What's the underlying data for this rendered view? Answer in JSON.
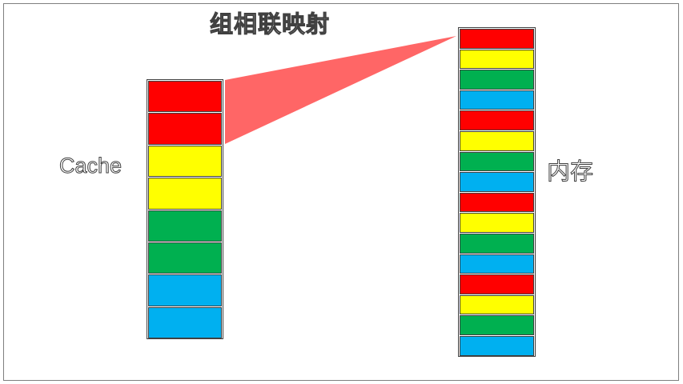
{
  "title": "组相联映射",
  "cache_label": "Cache",
  "memory_label": "内存",
  "colors": {
    "red": "#ff0000",
    "yellow": "#ffff00",
    "green": "#00b050",
    "blue": "#00b0f0",
    "mapping_fan": "#ff6666"
  },
  "cache_blocks": [
    "red",
    "red",
    "yellow",
    "yellow",
    "green",
    "green",
    "blue",
    "blue"
  ],
  "memory_blocks": [
    "red",
    "yellow",
    "green",
    "blue",
    "red",
    "yellow",
    "green",
    "blue",
    "red",
    "yellow",
    "green",
    "blue",
    "red",
    "yellow",
    "green",
    "blue"
  ]
}
